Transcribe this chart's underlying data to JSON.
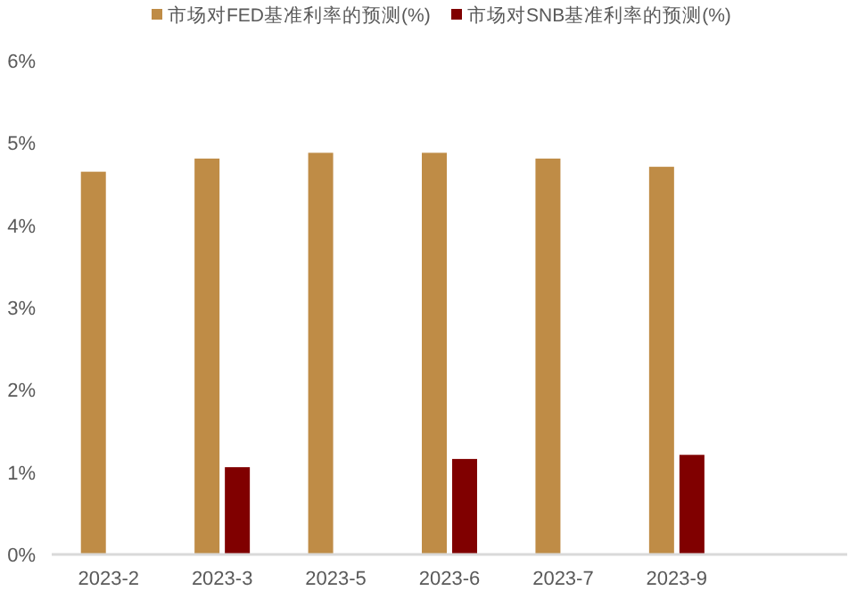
{
  "chart_data": {
    "type": "bar",
    "categories": [
      "2023-2",
      "2023-3",
      "2023-5",
      "2023-6",
      "2023-7",
      "2023-9",
      null
    ],
    "series": [
      {
        "name": "市场对FED基准利率的预测(%)",
        "color": "#bf8c46",
        "values": [
          4.65,
          4.81,
          4.88,
          4.88,
          4.81,
          4.71,
          null
        ]
      },
      {
        "name": "市场对SNB基准利率的预测(%)",
        "color": "#800000",
        "values": [
          null,
          1.06,
          null,
          1.16,
          null,
          1.21,
          null
        ]
      }
    ],
    "ylim": [
      0,
      6
    ],
    "yticks": [
      {
        "value": 0,
        "label": "0%"
      },
      {
        "value": 1,
        "label": "1%"
      },
      {
        "value": 2,
        "label": "2%"
      },
      {
        "value": 3,
        "label": "3%"
      },
      {
        "value": 4,
        "label": "4%"
      },
      {
        "value": 5,
        "label": "5%"
      },
      {
        "value": 6,
        "label": "6%"
      }
    ],
    "grid": false,
    "legend": "top"
  }
}
